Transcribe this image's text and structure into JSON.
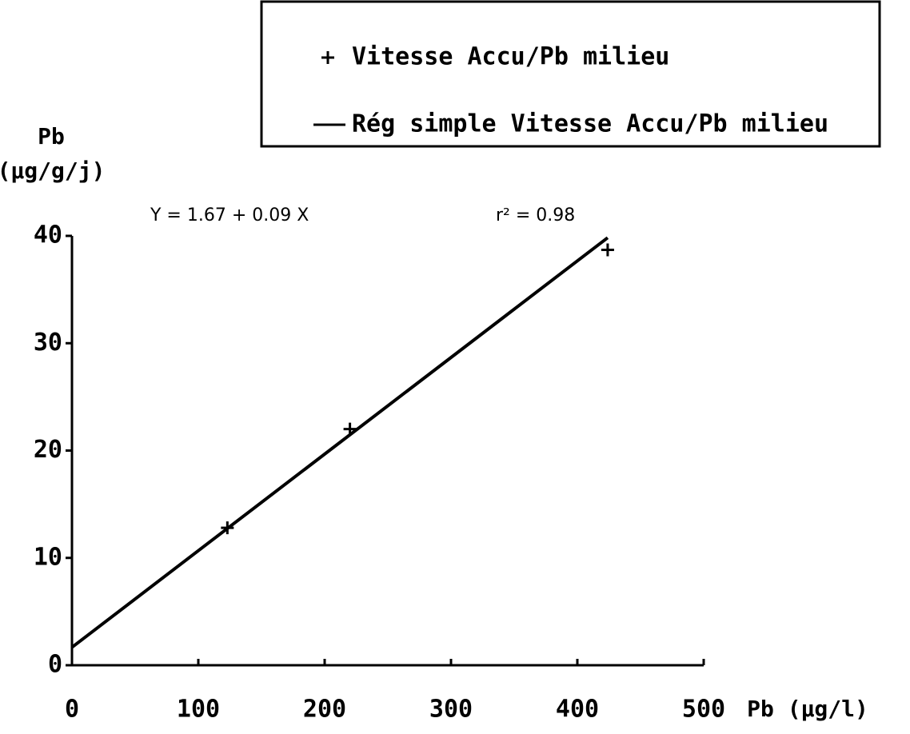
{
  "chart_data": {
    "type": "scatter",
    "y_label_lines": [
      "Pb",
      "(µg/g/j)"
    ],
    "x_label": "Pb (µg/l)",
    "annotations": [
      "Y = 1.67 + 0.09 X",
      "r² = 0.98"
    ],
    "series": [
      {
        "name": "Vitesse Accu/Pb milieu",
        "mode": "markers",
        "color": "#000000",
        "x": [
          123,
          220,
          424
        ],
        "values": [
          12.8,
          22,
          38.7
        ]
      },
      {
        "name": "Rég simple Vitesse Accu/Pb milieu",
        "mode": "line",
        "color": "#000000",
        "x": [
          0,
          424
        ],
        "values": [
          1.67,
          39.83
        ]
      }
    ],
    "xlim": [
      0,
      500
    ],
    "xticks": [
      0,
      100,
      200,
      300,
      400,
      500
    ],
    "ylim": [
      0,
      40
    ],
    "yticks": [
      0,
      10,
      20,
      30,
      40
    ],
    "grid": false
  }
}
